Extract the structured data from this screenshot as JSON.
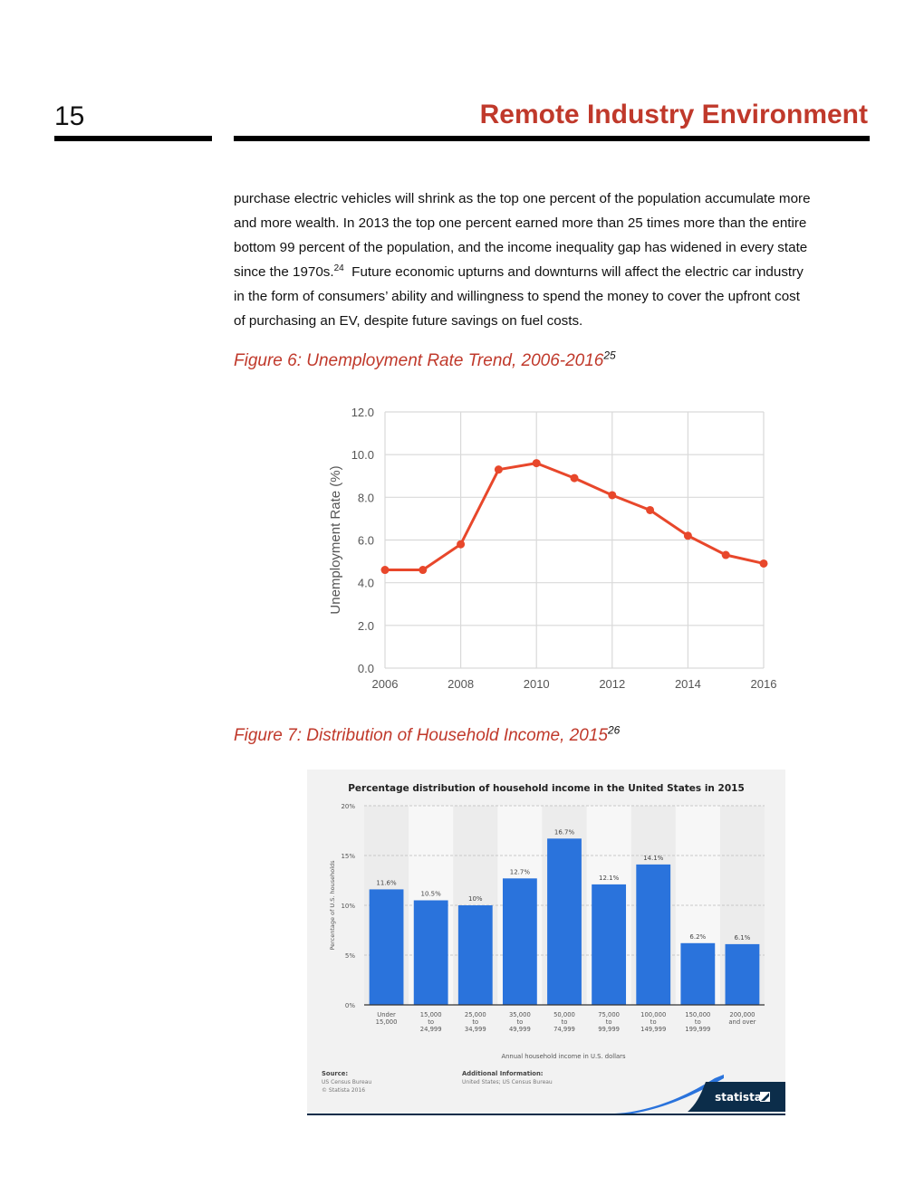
{
  "header": {
    "page_number": "15",
    "title": "Remote Industry Environment"
  },
  "body": {
    "lines": [
      "purchase electric vehicles will shrink as the top one percent of the population accumulate more",
      "and more wealth.  In 2013 the top one percent earned more than 25 times more than the entire",
      "bottom 99 percent of the population, and the income inequality gap has widened in every state"
    ],
    "line4_pre": "since the 1970s.",
    "line4_sup": "24",
    "line4_post": "  Future economic upturns and downturns will affect the electric car industry",
    "lines_after": [
      "in the form of consumers’ ability and willingness to spend the money to cover the upfront cost",
      "of purchasing an EV, despite future savings on fuel costs."
    ]
  },
  "figures": [
    {
      "caption": "Figure 6: Unemployment Rate Trend, 2006-2016",
      "footnote": "25"
    },
    {
      "caption": "Figure 7: Distribution of Household Income, 2015",
      "footnote": "26"
    }
  ],
  "chart_data": [
    {
      "type": "line",
      "title": "",
      "xlabel": "",
      "ylabel": "Unemployment Rate (%)",
      "x": [
        2006,
        2007,
        2008,
        2009,
        2010,
        2011,
        2012,
        2013,
        2014,
        2015,
        2016
      ],
      "series": [
        {
          "values": [
            4.6,
            4.6,
            5.8,
            9.3,
            9.6,
            8.9,
            8.1,
            7.4,
            6.2,
            5.3,
            4.9
          ]
        }
      ],
      "xticks": [
        "2006",
        "2008",
        "2010",
        "2012",
        "2014",
        "2016"
      ],
      "yticks": [
        "0.0",
        "2.0",
        "4.0",
        "6.0",
        "8.0",
        "10.0",
        "12.0"
      ],
      "xlim": [
        2006,
        2016
      ],
      "ylim": [
        0,
        12
      ],
      "grid": true,
      "color": "#e8472b"
    },
    {
      "type": "bar",
      "title": "Percentage distribution of household income in the United States in 2015",
      "xlabel": "Annual household income in U.S. dollars",
      "ylabel": "Percentage of U.S. households",
      "categories": [
        [
          "Under",
          "15,000"
        ],
        [
          "15,000",
          "to",
          "24,999"
        ],
        [
          "25,000",
          "to",
          "34,999"
        ],
        [
          "35,000",
          "to",
          "49,999"
        ],
        [
          "50,000",
          "to",
          "74,999"
        ],
        [
          "75,000",
          "to",
          "99,999"
        ],
        [
          "100,000",
          "to",
          "149,999"
        ],
        [
          "150,000",
          "to",
          "199,999"
        ],
        [
          "200,000",
          "and over"
        ]
      ],
      "values": [
        11.6,
        10.5,
        10,
        12.7,
        16.7,
        12.1,
        14.1,
        6.2,
        6.1
      ],
      "data_labels": [
        "11.6%",
        "10.5%",
        "10%",
        "12.7%",
        "16.7%",
        "12.1%",
        "14.1%",
        "6.2%",
        "6.1%"
      ],
      "yticks": [
        "0%",
        "5%",
        "10%",
        "15%",
        "20%"
      ],
      "ylim": [
        0,
        20
      ],
      "grid": true,
      "color": "#2a73dc",
      "source_title": "Source:",
      "source_lines": [
        "US Census Bureau",
        "© Statista 2016"
      ],
      "info_title": "Additional Information:",
      "info_lines": [
        "United States; US Census Bureau"
      ],
      "brand": "statista"
    }
  ]
}
